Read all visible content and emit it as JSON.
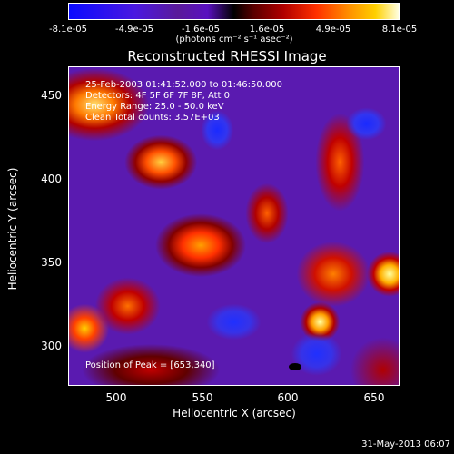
{
  "chart_data": {
    "type": "heatmap",
    "title": "Reconstructed RHESSI Image",
    "xlabel": "Heliocentric X (arcsec)",
    "ylabel": "Heliocentric Y (arcsec)",
    "xlim": [
      468,
      660
    ],
    "ylim": [
      275,
      477
    ],
    "x_ticks": [
      "500",
      "550",
      "600",
      "650"
    ],
    "y_ticks": [
      "300",
      "350",
      "400",
      "450"
    ],
    "colorbar": {
      "ticks": [
        "-8.1e-05",
        "-4.9e-05",
        "-1.6e-05",
        "1.6e-05",
        "4.9e-05",
        "8.1e-05"
      ],
      "unit": "(photons cm⁻² s⁻¹ asec⁻²)",
      "range": [
        -8.1e-05,
        8.1e-05
      ]
    },
    "annotations": {
      "time_range": "25-Feb-2003 01:41:52.000 to 01:46:50.000",
      "detectors": "Detectors: 4F 5F 6F 7F 8F, Att 0",
      "energy": "Energy Range: 25.0 - 50.0 keV",
      "clean": "Clean     Total counts: 3.57E+03",
      "peak": "Position of Peak = [653,340]"
    },
    "peak": {
      "x": 653,
      "y": 340
    },
    "datestamp": "31-May-2013 06:07"
  }
}
